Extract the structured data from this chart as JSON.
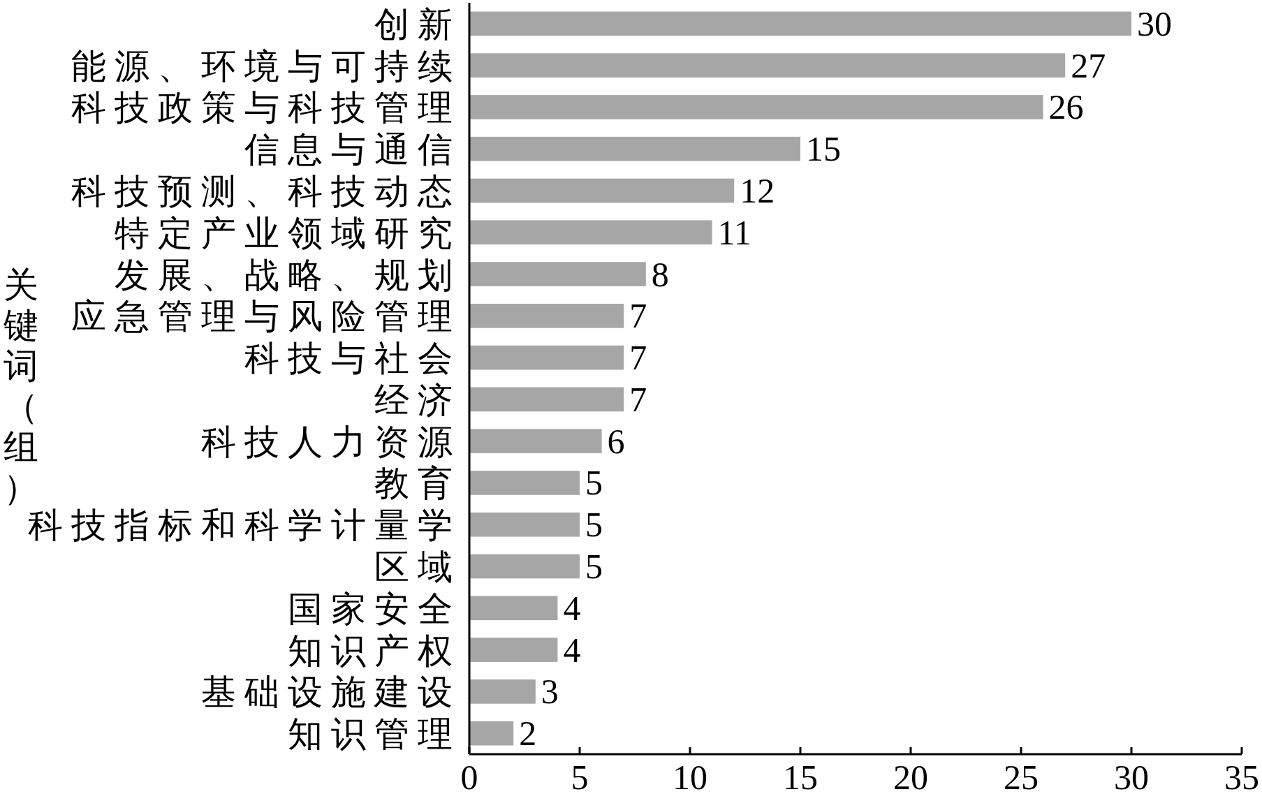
{
  "chart_data": {
    "type": "bar",
    "orientation": "horizontal",
    "ylabel": "关键词（组）",
    "categories": [
      "创新",
      "能源、环境与可持续",
      "科技政策与科技管理",
      "信息与通信",
      "科技预测、科技动态",
      "特定产业领域研究",
      "发展、战略、规划",
      "应急管理与风险管理",
      "科技与社会",
      "经济",
      "科技人力资源",
      "教育",
      "科技指标和科学计量学",
      "区域",
      "国家安全",
      "知识产权",
      "基础设施建设",
      "知识管理"
    ],
    "values": [
      30,
      27,
      26,
      15,
      12,
      11,
      8,
      7,
      7,
      7,
      6,
      5,
      5,
      5,
      4,
      4,
      3,
      2
    ],
    "color": "#a6a6a6",
    "xlim": [
      0,
      35
    ],
    "xticks": [
      0,
      5,
      10,
      15,
      20,
      25,
      30,
      35
    ],
    "data_labels": true
  }
}
